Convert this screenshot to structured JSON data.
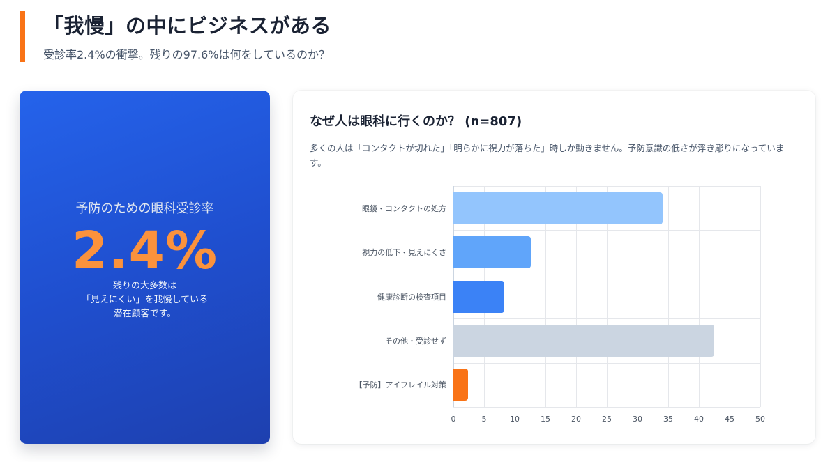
{
  "header": {
    "title": "「我慢」の中にビジネスがある",
    "subtitle": "受診率2.4%の衝撃。残りの97.6%は何をしているのか？",
    "accent_color": "#f97316"
  },
  "stat_card": {
    "label": "予防のための眼科受診率",
    "value": "2.4%",
    "note_lines": [
      "残りの大多数は",
      "「見えにくい」を我慢している",
      "潜在顧客です。"
    ],
    "gradient": [
      "#2563eb",
      "#1e40af"
    ],
    "value_color": "#fb923c"
  },
  "chart_card": {
    "title": "なぜ人は眼科に行くのか？ (n=807)",
    "description": "多くの人は「コンタクトが切れた」「明らかに視力が落ちた」時しか動きません。予防意識の低さが浮き彫りになっています。"
  },
  "chart_data": {
    "type": "bar",
    "orientation": "horizontal",
    "title": "なぜ人は眼科に行くのか？ (n=807)",
    "xlabel": "",
    "ylabel": "",
    "categories": [
      "眼鏡・コンタクトの処方",
      "視力の低下・見えにくさ",
      "健康診断の検査項目",
      "その他・受診せず",
      "【予防】アイフレイル対策"
    ],
    "values": [
      34.1,
      12.6,
      8.3,
      42.5,
      2.4
    ],
    "colors": [
      "#93c5fd",
      "#60a5fa",
      "#3b82f6",
      "#cbd5e1",
      "#f97316"
    ],
    "xlim": [
      0,
      50
    ],
    "xticks": [
      "0",
      "5",
      "10",
      "15",
      "20",
      "25",
      "30",
      "35",
      "40",
      "45",
      "50"
    ],
    "grid": true,
    "legend": "none"
  }
}
